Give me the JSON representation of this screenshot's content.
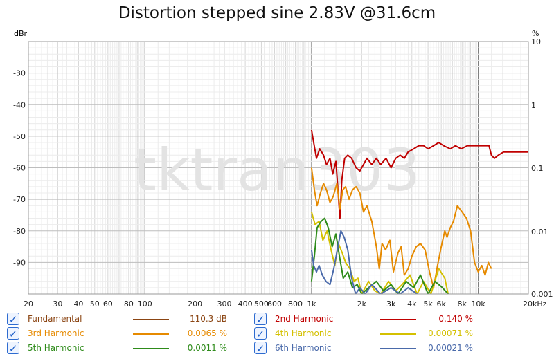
{
  "chart_data": {
    "type": "line",
    "title": "Distortion stepped sine 2.83V @31.6cm",
    "y_left_label": "dBr",
    "y_right_label": "%",
    "x_scale": "log",
    "x_range_hz": [
      20,
      20000
    ],
    "y_left_range": [
      -100,
      -20
    ],
    "x_tick_labels": [
      {
        "v": 20,
        "t": "20"
      },
      {
        "v": 30,
        "t": "30"
      },
      {
        "v": 40,
        "t": "40"
      },
      {
        "v": 50,
        "t": "50"
      },
      {
        "v": 60,
        "t": "60"
      },
      {
        "v": 80,
        "t": "80"
      },
      {
        "v": 100,
        "t": "100"
      },
      {
        "v": 200,
        "t": "200"
      },
      {
        "v": 300,
        "t": "300"
      },
      {
        "v": 400,
        "t": "400"
      },
      {
        "v": 500,
        "t": "500"
      },
      {
        "v": 600,
        "t": "600"
      },
      {
        "v": 800,
        "t": "800"
      },
      {
        "v": 1000,
        "t": "1k"
      },
      {
        "v": 2000,
        "t": "2k"
      },
      {
        "v": 3000,
        "t": "3k"
      },
      {
        "v": 4000,
        "t": "4k"
      },
      {
        "v": 5000,
        "t": "5k"
      },
      {
        "v": 6000,
        "t": "6k"
      },
      {
        "v": 8000,
        "t": "8k"
      },
      {
        "v": 10000,
        "t": "10k"
      },
      {
        "v": 20000,
        "t": "20kHz"
      }
    ],
    "y_left_ticks": [
      {
        "v": -30,
        "t": "-30"
      },
      {
        "v": -40,
        "t": "-40"
      },
      {
        "v": -50,
        "t": "-50"
      },
      {
        "v": -60,
        "t": "-60"
      },
      {
        "v": -70,
        "t": "-70"
      },
      {
        "v": -80,
        "t": "-80"
      },
      {
        "v": -90,
        "t": "-90"
      }
    ],
    "y_right_ticks": [
      {
        "db": -20,
        "t": "10"
      },
      {
        "db": -60,
        "t": "0.1"
      },
      {
        "db": -60,
        "t": "0.1"
      }
    ],
    "watermark": "tktran303",
    "series": [
      {
        "name": "Fundamental",
        "color": "#8b4513",
        "value": "110.3 dB",
        "points": []
      },
      {
        "name": "2nd Harmonic",
        "color": "#c00000",
        "value": "0.140 %",
        "points": [
          [
            1000,
            -48
          ],
          [
            1030,
            -52
          ],
          [
            1070,
            -57
          ],
          [
            1120,
            -54
          ],
          [
            1180,
            -56
          ],
          [
            1230,
            -59
          ],
          [
            1290,
            -57
          ],
          [
            1340,
            -62
          ],
          [
            1400,
            -58
          ],
          [
            1440,
            -67
          ],
          [
            1480,
            -76
          ],
          [
            1520,
            -64
          ],
          [
            1580,
            -57
          ],
          [
            1650,
            -56
          ],
          [
            1740,
            -57
          ],
          [
            1850,
            -60
          ],
          [
            1950,
            -61
          ],
          [
            2050,
            -59
          ],
          [
            2150,
            -57
          ],
          [
            2300,
            -59
          ],
          [
            2450,
            -57
          ],
          [
            2600,
            -59
          ],
          [
            2800,
            -57
          ],
          [
            3000,
            -60
          ],
          [
            3200,
            -57
          ],
          [
            3400,
            -56
          ],
          [
            3600,
            -57
          ],
          [
            3800,
            -55
          ],
          [
            4100,
            -54
          ],
          [
            4400,
            -53
          ],
          [
            4700,
            -53
          ],
          [
            5000,
            -54
          ],
          [
            5400,
            -53
          ],
          [
            5800,
            -52
          ],
          [
            6200,
            -53
          ],
          [
            6800,
            -54
          ],
          [
            7300,
            -53
          ],
          [
            7900,
            -54
          ],
          [
            8600,
            -53
          ],
          [
            9400,
            -53
          ],
          [
            10200,
            -53
          ],
          [
            11000,
            -53
          ],
          [
            11600,
            -53
          ],
          [
            12000,
            -56
          ],
          [
            12500,
            -57
          ],
          [
            13200,
            -56
          ],
          [
            14200,
            -55
          ],
          [
            15500,
            -55
          ],
          [
            17000,
            -55
          ],
          [
            18500,
            -55
          ],
          [
            20000,
            -55
          ]
        ]
      },
      {
        "name": "3rd Harmonic",
        "color": "#e68a00",
        "value": "0.0065 %",
        "points": [
          [
            1000,
            -60
          ],
          [
            1040,
            -67
          ],
          [
            1080,
            -72
          ],
          [
            1130,
            -68
          ],
          [
            1180,
            -65
          ],
          [
            1230,
            -67
          ],
          [
            1290,
            -71
          ],
          [
            1350,
            -69
          ],
          [
            1420,
            -65
          ],
          [
            1480,
            -73
          ],
          [
            1540,
            -67
          ],
          [
            1600,
            -66
          ],
          [
            1680,
            -70
          ],
          [
            1760,
            -67
          ],
          [
            1850,
            -66
          ],
          [
            1950,
            -68
          ],
          [
            2050,
            -74
          ],
          [
            2150,
            -72
          ],
          [
            2300,
            -77
          ],
          [
            2450,
            -85
          ],
          [
            2550,
            -92
          ],
          [
            2650,
            -84
          ],
          [
            2780,
            -86
          ],
          [
            2950,
            -83
          ],
          [
            3100,
            -93
          ],
          [
            3300,
            -87
          ],
          [
            3450,
            -85
          ],
          [
            3600,
            -94
          ],
          [
            3800,
            -92
          ],
          [
            4000,
            -88
          ],
          [
            4250,
            -85
          ],
          [
            4500,
            -84
          ],
          [
            4800,
            -86
          ],
          [
            5100,
            -93
          ],
          [
            5400,
            -98
          ],
          [
            5700,
            -91
          ],
          [
            6000,
            -85
          ],
          [
            6300,
            -80
          ],
          [
            6500,
            -82
          ],
          [
            6800,
            -79
          ],
          [
            7100,
            -77
          ],
          [
            7500,
            -72
          ],
          [
            8000,
            -74
          ],
          [
            8500,
            -76
          ],
          [
            9000,
            -80
          ],
          [
            9500,
            -90
          ],
          [
            10000,
            -93
          ],
          [
            10500,
            -91
          ],
          [
            11000,
            -94
          ],
          [
            11500,
            -90
          ],
          [
            12000,
            -92
          ]
        ]
      },
      {
        "name": "4th Harmonic",
        "color": "#d4c000",
        "value": "0.00071 %",
        "points": [
          [
            1000,
            -74
          ],
          [
            1050,
            -78
          ],
          [
            1110,
            -77
          ],
          [
            1170,
            -83
          ],
          [
            1240,
            -80
          ],
          [
            1310,
            -86
          ],
          [
            1380,
            -91
          ],
          [
            1450,
            -84
          ],
          [
            1530,
            -87
          ],
          [
            1600,
            -90
          ],
          [
            1700,
            -92
          ],
          [
            1800,
            -96
          ],
          [
            1900,
            -95
          ],
          [
            2000,
            -100
          ],
          [
            2200,
            -96
          ],
          [
            2400,
            -99
          ],
          [
            2600,
            -100
          ],
          [
            2900,
            -96
          ],
          [
            3200,
            -99
          ],
          [
            3500,
            -97
          ],
          [
            3900,
            -94
          ],
          [
            4300,
            -100
          ],
          [
            4700,
            -96
          ],
          [
            5200,
            -100
          ],
          [
            5800,
            -92
          ],
          [
            6300,
            -95
          ],
          [
            6600,
            -100
          ]
        ]
      },
      {
        "name": "5th Harmonic",
        "color": "#2e8b1a",
        "value": "0.0011 %",
        "points": [
          [
            1000,
            -96
          ],
          [
            1040,
            -88
          ],
          [
            1080,
            -79
          ],
          [
            1140,
            -77
          ],
          [
            1200,
            -76
          ],
          [
            1260,
            -79
          ],
          [
            1330,
            -85
          ],
          [
            1400,
            -81
          ],
          [
            1470,
            -88
          ],
          [
            1550,
            -95
          ],
          [
            1650,
            -93
          ],
          [
            1760,
            -98
          ],
          [
            1880,
            -97
          ],
          [
            2000,
            -100
          ],
          [
            2200,
            -98
          ],
          [
            2450,
            -96
          ],
          [
            2700,
            -99
          ],
          [
            3000,
            -97
          ],
          [
            3300,
            -100
          ],
          [
            3700,
            -96
          ],
          [
            4100,
            -98
          ],
          [
            4500,
            -94
          ],
          [
            5000,
            -100
          ],
          [
            5500,
            -96
          ],
          [
            6100,
            -98
          ],
          [
            6600,
            -100
          ]
        ]
      },
      {
        "name": "6th Harmonic",
        "color": "#4a6aaa",
        "value": "0.00021 %",
        "points": [
          [
            1000,
            -86
          ],
          [
            1030,
            -91
          ],
          [
            1070,
            -93
          ],
          [
            1110,
            -91
          ],
          [
            1160,
            -94
          ],
          [
            1220,
            -96
          ],
          [
            1290,
            -97
          ],
          [
            1360,
            -92
          ],
          [
            1440,
            -85
          ],
          [
            1500,
            -80
          ],
          [
            1570,
            -82
          ],
          [
            1650,
            -86
          ],
          [
            1740,
            -95
          ],
          [
            1840,
            -100
          ],
          [
            1950,
            -98
          ],
          [
            2100,
            -100
          ],
          [
            2300,
            -97
          ],
          [
            2600,
            -100
          ],
          [
            3000,
            -98
          ],
          [
            3400,
            -100
          ],
          [
            3800,
            -98
          ],
          [
            4300,
            -100
          ]
        ]
      }
    ]
  }
}
